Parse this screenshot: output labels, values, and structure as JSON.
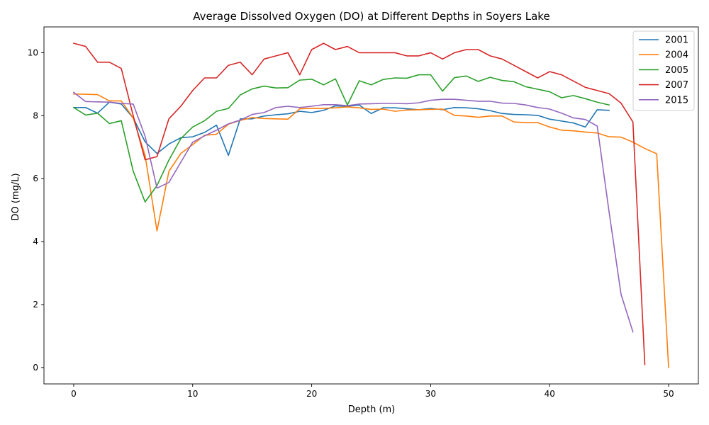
{
  "chart_data": {
    "type": "line",
    "title": "Average Dissolved Oxygen (DO) at Different Depths in Soyers Lake",
    "xlabel": "Depth (m)",
    "ylabel": "DO (mg/L)",
    "xlim": [
      -2.5,
      52.5
    ],
    "ylim": [
      -0.52,
      10.82
    ],
    "xticks": [
      0,
      10,
      20,
      30,
      40,
      50
    ],
    "yticks": [
      0,
      2,
      4,
      6,
      8,
      10
    ],
    "grid": false,
    "legend_position": "upper right",
    "series": [
      {
        "name": "2001",
        "color": "#1f77b4",
        "x": [
          0,
          1,
          2,
          3,
          4,
          5,
          6,
          7,
          8,
          9,
          10,
          11,
          12,
          13,
          14,
          15,
          16,
          17,
          18,
          19,
          20,
          21,
          22,
          23,
          24,
          25,
          26,
          27,
          28,
          29,
          30,
          31,
          32,
          33,
          34,
          35,
          36,
          37,
          38,
          39,
          40,
          41,
          42,
          43,
          44,
          45
        ],
        "y": [
          8.26,
          8.26,
          8.08,
          8.43,
          8.37,
          7.93,
          7.17,
          6.8,
          7.1,
          7.3,
          7.33,
          7.47,
          7.7,
          6.74,
          7.9,
          7.9,
          7.99,
          8.03,
          8.06,
          8.14,
          8.1,
          8.17,
          8.31,
          8.3,
          8.34,
          8.07,
          8.25,
          8.25,
          8.22,
          8.19,
          8.23,
          8.19,
          8.26,
          8.25,
          8.22,
          8.16,
          8.07,
          8.04,
          8.03,
          8.01,
          7.89,
          7.83,
          7.77,
          7.64,
          8.19,
          8.17
        ]
      },
      {
        "name": "2004",
        "color": "#ff7f0e",
        "x": [
          0,
          1,
          2,
          3,
          4,
          5,
          6,
          7,
          8,
          9,
          10,
          11,
          12,
          13,
          14,
          15,
          16,
          17,
          18,
          19,
          20,
          21,
          22,
          23,
          24,
          25,
          26,
          27,
          28,
          29,
          30,
          31,
          32,
          33,
          34,
          35,
          36,
          37,
          38,
          39,
          40,
          41,
          42,
          43,
          44,
          45,
          46,
          47,
          48,
          49,
          50
        ],
        "y": [
          8.69,
          8.68,
          8.67,
          8.47,
          8.47,
          7.93,
          6.74,
          4.34,
          6.23,
          6.8,
          7.08,
          7.38,
          7.41,
          7.73,
          7.85,
          7.94,
          7.91,
          7.9,
          7.89,
          8.22,
          8.23,
          8.23,
          8.25,
          8.28,
          8.25,
          8.2,
          8.21,
          8.14,
          8.18,
          8.19,
          8.2,
          8.21,
          8.01,
          7.99,
          7.95,
          7.99,
          7.99,
          7.8,
          7.78,
          7.78,
          7.64,
          7.54,
          7.52,
          7.48,
          7.45,
          7.33,
          7.32,
          7.16,
          6.96,
          6.79,
          0.0
        ]
      },
      {
        "name": "2005",
        "color": "#2ca02c",
        "x": [
          0,
          1,
          2,
          3,
          4,
          5,
          6,
          7,
          8,
          9,
          10,
          11,
          12,
          13,
          14,
          15,
          16,
          17,
          18,
          19,
          20,
          21,
          22,
          23,
          24,
          25,
          26,
          27,
          28,
          29,
          30,
          31,
          32,
          33,
          34,
          35,
          36,
          37,
          38,
          39,
          40,
          41,
          42,
          43,
          44,
          45
        ],
        "y": [
          8.26,
          8.02,
          8.08,
          7.75,
          7.84,
          6.24,
          5.26,
          5.78,
          6.59,
          7.27,
          7.64,
          7.84,
          8.14,
          8.23,
          8.66,
          8.85,
          8.94,
          8.88,
          8.89,
          9.13,
          9.16,
          8.98,
          9.17,
          8.34,
          9.11,
          8.98,
          9.15,
          9.2,
          9.19,
          9.3,
          9.3,
          8.78,
          9.21,
          9.26,
          9.09,
          9.22,
          9.12,
          9.08,
          8.92,
          8.84,
          8.76,
          8.57,
          8.64,
          8.54,
          8.43,
          8.34
        ]
      },
      {
        "name": "2007",
        "color": "#d62728",
        "x": [
          0,
          1,
          2,
          3,
          4,
          5,
          6,
          7,
          8,
          9,
          10,
          11,
          12,
          13,
          14,
          15,
          16,
          17,
          18,
          19,
          20,
          21,
          22,
          23,
          24,
          25,
          26,
          27,
          28,
          29,
          30,
          31,
          32,
          33,
          34,
          35,
          36,
          37,
          38,
          39,
          40,
          41,
          42,
          43,
          44,
          45,
          46,
          47,
          48
        ],
        "y": [
          10.3,
          10.2,
          9.7,
          9.7,
          9.5,
          8.0,
          6.6,
          6.7,
          7.9,
          8.3,
          8.8,
          9.2,
          9.2,
          9.6,
          9.7,
          9.3,
          9.8,
          9.9,
          10.0,
          9.3,
          10.1,
          10.3,
          10.1,
          10.2,
          10.0,
          10.0,
          10.0,
          10.0,
          9.9,
          9.9,
          10.0,
          9.8,
          10.0,
          10.1,
          10.1,
          9.9,
          9.8,
          9.6,
          9.4,
          9.2,
          9.4,
          9.3,
          9.1,
          8.9,
          8.8,
          8.7,
          8.4,
          7.8,
          0.1
        ]
      },
      {
        "name": "2015",
        "color": "#9467bd",
        "x": [
          0,
          1,
          2,
          3,
          4,
          5,
          6,
          7,
          8,
          9,
          10,
          11,
          12,
          13,
          14,
          15,
          16,
          17,
          18,
          19,
          20,
          21,
          22,
          23,
          24,
          25,
          26,
          27,
          28,
          29,
          30,
          31,
          32,
          33,
          34,
          35,
          36,
          37,
          38,
          39,
          40,
          41,
          42,
          43,
          44,
          45,
          46,
          47
        ],
        "y": [
          8.74,
          8.45,
          8.44,
          8.43,
          8.39,
          8.37,
          7.35,
          5.7,
          5.88,
          6.52,
          7.16,
          7.36,
          7.54,
          7.74,
          7.86,
          8.04,
          8.1,
          8.26,
          8.3,
          8.26,
          8.3,
          8.35,
          8.35,
          8.32,
          8.37,
          8.38,
          8.39,
          8.39,
          8.38,
          8.41,
          8.49,
          8.52,
          8.52,
          8.49,
          8.46,
          8.46,
          8.4,
          8.39,
          8.34,
          8.26,
          8.21,
          8.08,
          7.93,
          7.88,
          7.67,
          4.93,
          2.33,
          1.13
        ]
      }
    ]
  }
}
